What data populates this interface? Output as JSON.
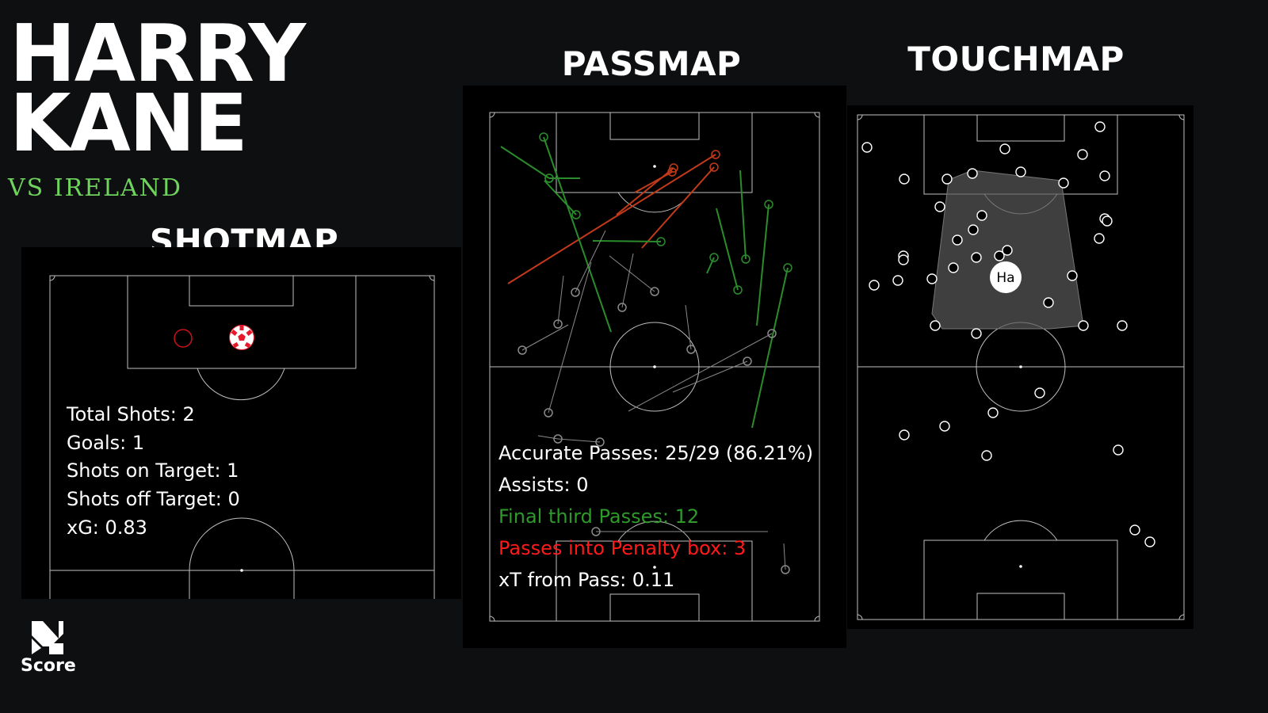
{
  "player": {
    "first_name": "HARRY",
    "last_name": "KANE"
  },
  "opponent": "VS IRELAND",
  "sections": {
    "shotmap": "SHOTMAP",
    "passmap": "PASSMAP",
    "touchmap": "TOUCHMAP"
  },
  "shot_stats": [
    "Total Shots: 2",
    "Goals: 1",
    "Shots on Target: 1",
    "Shots off Target: 0",
    "xG: 0.83"
  ],
  "pass_stats": [
    {
      "text": "Accurate Passes: 25/29 (86.21%)",
      "color": "#ffffff"
    },
    {
      "text": "Assists: 0",
      "color": "#ffffff"
    },
    {
      "text": "Final third Passes: 12",
      "color": "#2e9a2a"
    },
    {
      "text": "Passes into Penalty box: 3",
      "color": "#ff1a1a"
    },
    {
      "text": "xT from Pass: 0.11",
      "color": "#ffffff"
    }
  ],
  "touchmap_label": "Ha",
  "logo_text": "Score",
  "colors": {
    "background": "#0e0f11",
    "panel": "#000000",
    "opponent": "#6fd35e",
    "final_third": "#2e9a2a",
    "penalty_box": "#ff1a1a",
    "pitch_lines": "#bfbfbf"
  },
  "icons": {
    "goal_marker": "football-icon",
    "logo": "score-logo-icon"
  }
}
